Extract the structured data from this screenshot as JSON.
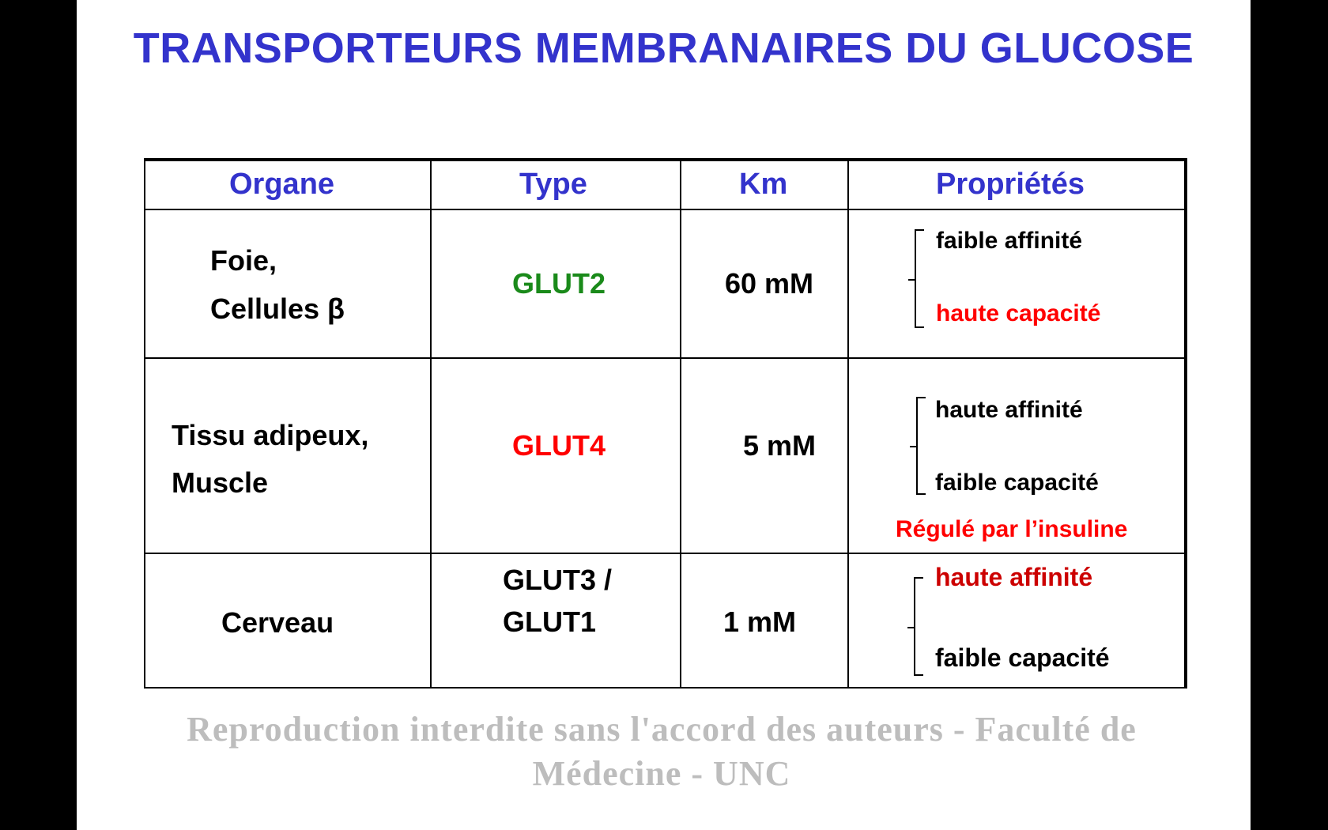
{
  "title": "TRANSPORTEURS MEMBRANAIRES DU GLUCOSE",
  "watermark": "Reproduction interdite  sans l'accord des auteurs - Faculté de Médecine - UNC",
  "colors": {
    "title": "#3333cc",
    "green": "#1a8a1a",
    "red": "#ff0000",
    "darkred": "#cc0000"
  },
  "table": {
    "headers": [
      "Organe",
      "Type",
      "Km",
      "Propriétés"
    ],
    "rows": [
      {
        "organe": [
          "Foie,",
          "Cellules β"
        ],
        "type": [
          "GLUT2"
        ],
        "km": "60 mM",
        "props": [
          "faible affinité",
          "haute capacité"
        ],
        "note": ""
      },
      {
        "organe": [
          "Tissu adipeux,",
          "Muscle"
        ],
        "type": [
          "GLUT4"
        ],
        "km": "5 mM",
        "props": [
          "haute affinité",
          "faible capacité"
        ],
        "note": "Régulé par l’insuline"
      },
      {
        "organe": [
          "Cerveau"
        ],
        "type": [
          "GLUT3 /",
          "GLUT1"
        ],
        "km": "1 mM",
        "props": [
          "haute affinité",
          "faible capacité"
        ],
        "note": ""
      }
    ]
  }
}
